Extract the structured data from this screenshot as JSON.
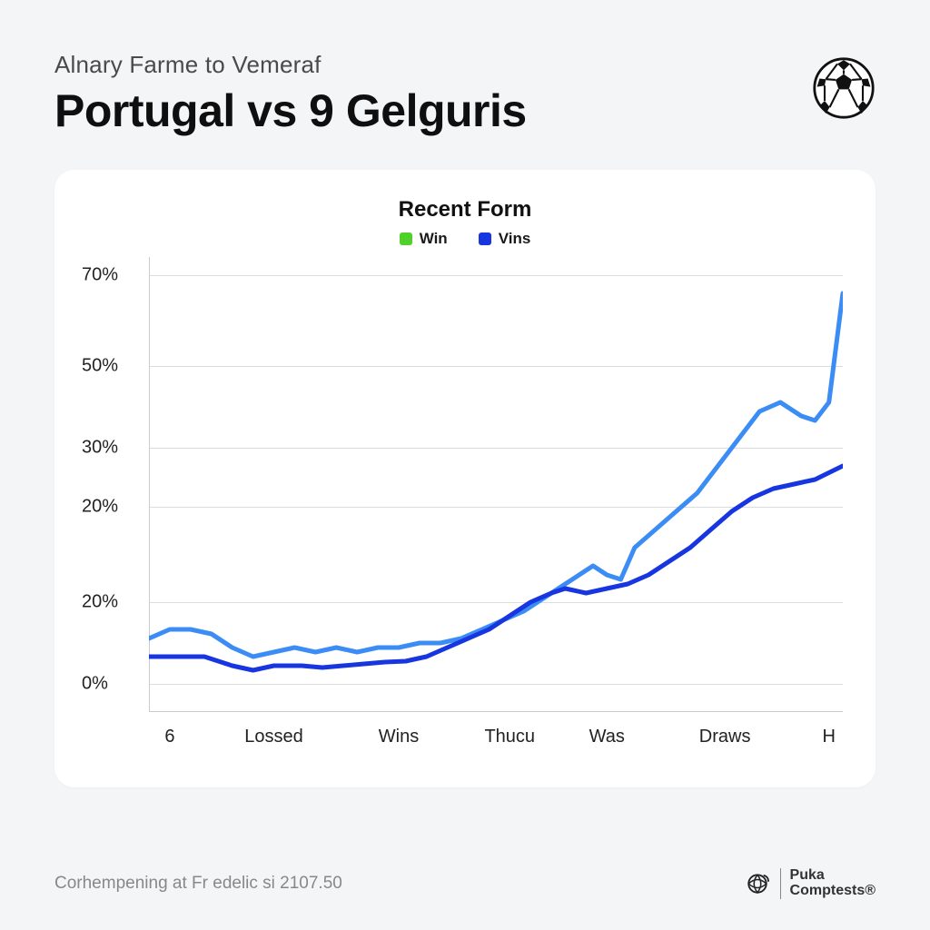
{
  "header": {
    "subtitle": "Alnary Farme to Vemeraf",
    "title": "Portugal vs 9 Gelguris"
  },
  "chart": {
    "type": "line",
    "title": "Recent Form",
    "legend": [
      {
        "label": "Win",
        "color": "#4fd12a"
      },
      {
        "label": "Vins",
        "color": "#1736e0"
      }
    ],
    "background_color": "#ffffff",
    "grid_color": "#d9dde2",
    "y_ticks": [
      "70%",
      "50%",
      "30%",
      "20%",
      "20%",
      "0%"
    ],
    "y_tick_positions_pct": [
      4,
      24,
      42,
      55,
      76,
      94
    ],
    "x_ticks": [
      "6",
      "Lossed",
      "Wins",
      "Thucu",
      "Was",
      "Draws",
      "H"
    ],
    "x_tick_positions_pct": [
      3,
      18,
      36,
      52,
      66,
      83,
      98
    ],
    "series": [
      {
        "name": "line-a",
        "color": "#3b8df5",
        "width": 5,
        "points": [
          [
            0,
            8
          ],
          [
            3,
            9
          ],
          [
            6,
            9
          ],
          [
            9,
            8.5
          ],
          [
            12,
            7
          ],
          [
            15,
            6
          ],
          [
            18,
            6.5
          ],
          [
            21,
            7
          ],
          [
            24,
            6.5
          ],
          [
            27,
            7
          ],
          [
            30,
            6.5
          ],
          [
            33,
            7
          ],
          [
            36,
            7
          ],
          [
            39,
            7.5
          ],
          [
            42,
            7.5
          ],
          [
            45,
            8
          ],
          [
            48,
            9
          ],
          [
            51,
            10
          ],
          [
            54,
            11
          ],
          [
            57,
            12.5
          ],
          [
            60,
            14
          ],
          [
            62,
            15
          ],
          [
            64,
            16
          ],
          [
            66,
            15
          ],
          [
            68,
            14.5
          ],
          [
            70,
            18
          ],
          [
            73,
            20
          ],
          [
            76,
            22
          ],
          [
            79,
            24
          ],
          [
            82,
            27
          ],
          [
            85,
            30
          ],
          [
            88,
            33
          ],
          [
            91,
            34
          ],
          [
            94,
            32.5
          ],
          [
            96,
            32
          ],
          [
            98,
            34
          ],
          [
            100,
            46
          ]
        ]
      },
      {
        "name": "line-b",
        "color": "#1736e0",
        "width": 5,
        "points": [
          [
            0,
            6
          ],
          [
            4,
            6
          ],
          [
            8,
            6
          ],
          [
            12,
            5
          ],
          [
            15,
            4.5
          ],
          [
            18,
            5
          ],
          [
            22,
            5
          ],
          [
            25,
            4.8
          ],
          [
            28,
            5
          ],
          [
            31,
            5.2
          ],
          [
            34,
            5.4
          ],
          [
            37,
            5.5
          ],
          [
            40,
            6
          ],
          [
            43,
            7
          ],
          [
            46,
            8
          ],
          [
            49,
            9
          ],
          [
            52,
            10.5
          ],
          [
            55,
            12
          ],
          [
            58,
            13
          ],
          [
            60,
            13.5
          ],
          [
            63,
            13
          ],
          [
            66,
            13.5
          ],
          [
            69,
            14
          ],
          [
            72,
            15
          ],
          [
            75,
            16.5
          ],
          [
            78,
            18
          ],
          [
            81,
            20
          ],
          [
            84,
            22
          ],
          [
            87,
            23.5
          ],
          [
            90,
            24.5
          ],
          [
            93,
            25
          ],
          [
            96,
            25.5
          ],
          [
            100,
            27
          ]
        ]
      }
    ],
    "y_domain": [
      0,
      50
    ]
  },
  "footer": {
    "note": "Corhempening at Fr edelic si 2107.50",
    "brand_line1": "Puka",
    "brand_line2": "Comptests®"
  },
  "colors": {
    "page_bg": "#f3f5f7",
    "text": "#1a1a1a",
    "muted": "#888888"
  }
}
